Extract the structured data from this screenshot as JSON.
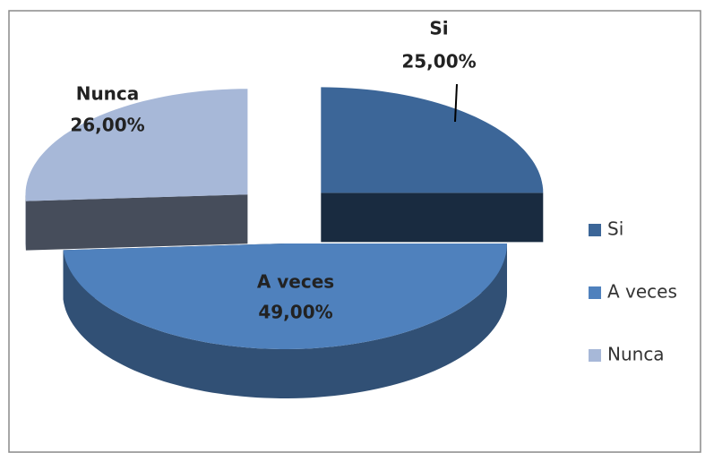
{
  "chart_data": {
    "type": "pie3d",
    "categories": [
      "Si",
      "A veces",
      "Nunca"
    ],
    "values": [
      25,
      49,
      26
    ],
    "value_labels": [
      "25,00%",
      "49,00%",
      "26,00%"
    ],
    "colors": [
      "#3c6698",
      "#4f81bd",
      "#a7b8d8"
    ],
    "explode": [
      true,
      false,
      true
    ],
    "legend": "right"
  }
}
